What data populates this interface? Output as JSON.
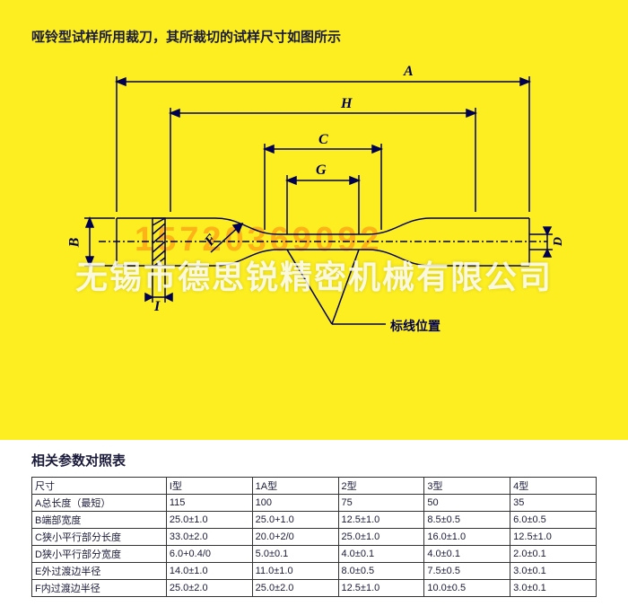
{
  "caption": "哑铃型试样所用裁刀，其所裁切的试样尺寸如图所示",
  "diagram": {
    "dims": {
      "A": "A",
      "H": "H",
      "C": "C",
      "G": "G",
      "B": "B",
      "F": "F",
      "I": "I",
      "D": "D"
    },
    "markline_label": "标线位置",
    "colors": {
      "bg": "#fcee21",
      "line": "#000050",
      "hatch": "#000050"
    }
  },
  "watermarks": {
    "phone": "15720369092",
    "company": "无锡市德思锐精密机械有限公司"
  },
  "table": {
    "title": "相关参数对照表",
    "columns": [
      "尺寸",
      "I型",
      "1A型",
      "2型",
      "3型",
      "4型"
    ],
    "rows": [
      [
        "A总长度（最短）",
        "115",
        "100",
        "75",
        "50",
        "35"
      ],
      [
        "B端部宽度",
        "25.0±1.0",
        "25.0+1.0",
        "12.5±1.0",
        "8.5±0.5",
        "6.0±0.5"
      ],
      [
        "C狭小平行部分长度",
        "33.0±2.0",
        "20.0+2/0",
        "25.0±1.0",
        "16.0±1.0",
        "12.5±1.0"
      ],
      [
        "D狭小平行部分宽度",
        "6.0+0.4/0",
        "5.0±0.1",
        "4.0±0.1",
        "4.0±0.1",
        "2.0±0.1"
      ],
      [
        "E外过渡边半径",
        "14.0±1.0",
        "11.0±1.0",
        "8.0±0.5",
        "7.5±0.5",
        "3.0±0.1"
      ],
      [
        "F内过渡边半径",
        "25.0±2.0",
        "25.0±2.0",
        "12.5±1.0",
        "10.0±0.5",
        "3.0±0.1"
      ]
    ],
    "col_widths": [
      "150px",
      "96px",
      "96px",
      "96px",
      "96px",
      "96px"
    ]
  }
}
